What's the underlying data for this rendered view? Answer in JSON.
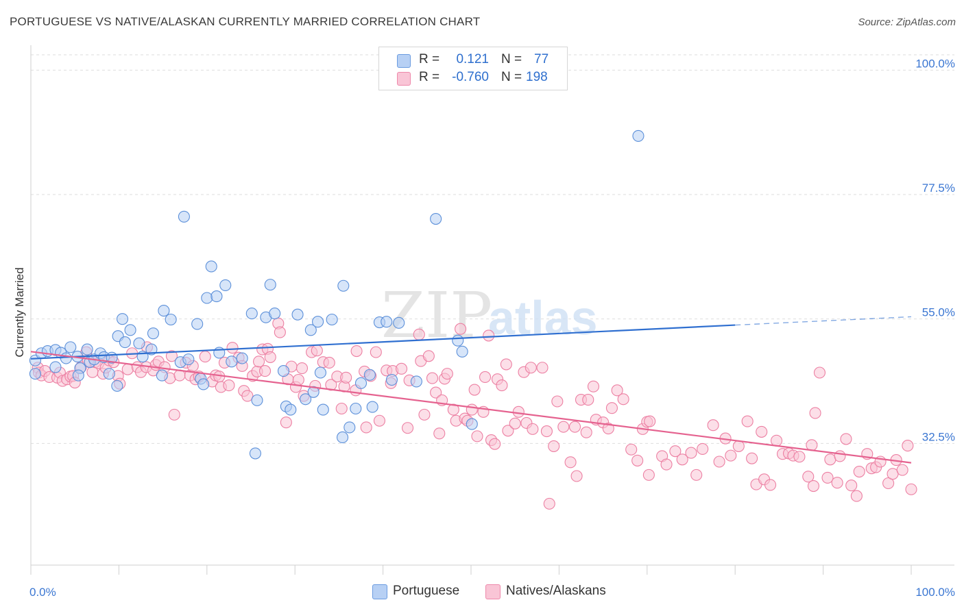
{
  "title": "PORTUGUESE VS NATIVE/ALASKAN CURRENTLY MARRIED CORRELATION CHART",
  "source": "Source: ZipAtlas.com",
  "watermark": {
    "zip": "ZIP",
    "atlas": "atlas"
  },
  "legend": {
    "r_label": "R =",
    "n_label": "N =",
    "rows": [
      {
        "r": "0.121",
        "n": "77",
        "fill": "#b7d0f4",
        "stroke": "#6a9be0"
      },
      {
        "r": "-0.760",
        "n": "198",
        "fill": "#f9c5d6",
        "stroke": "#ee88aa"
      }
    ]
  },
  "colors": {
    "portuguese_fill": "#b7d0f4",
    "portuguese_stroke": "#5b8fd9",
    "portuguese_line": "#2f6fd0",
    "native_fill": "#f9c5d6",
    "native_stroke": "#ec7fa2",
    "native_line": "#e5628f",
    "axis_label": "#3a76d2",
    "grid": "#dddddd"
  },
  "chart_data": {
    "type": "scatter",
    "title": "PORTUGUESE VS NATIVE/ALASKAN CURRENTLY MARRIED CORRELATION CHART",
    "xlabel": "",
    "ylabel": "Currently Married",
    "xlim": [
      0,
      100
    ],
    "ylim": [
      10.5,
      104.5
    ],
    "x_tick_labels": [
      {
        "value": 0,
        "label": "0.0%"
      },
      {
        "value": 100,
        "label": "100.0%"
      }
    ],
    "y_tick_labels": [
      {
        "value": 100,
        "label": "100.0%"
      },
      {
        "value": 77.5,
        "label": "77.5%"
      },
      {
        "value": 55,
        "label": "55.0%"
      },
      {
        "value": 32.5,
        "label": "32.5%"
      }
    ],
    "x_minor_ticks": [
      0,
      10,
      20,
      30,
      40,
      50,
      60,
      70,
      80,
      90,
      100
    ],
    "series": [
      {
        "name": "Portuguese",
        "r": 0.121,
        "n": 77,
        "trend": {
          "x0": 0,
          "y0": 47.8,
          "x1": 80,
          "y1": 53.9,
          "dash_x1": 100,
          "dash_y1": 55.4
        },
        "points": [
          [
            0.5,
            45.1
          ],
          [
            0.5,
            47.5
          ],
          [
            1.2,
            48.8
          ],
          [
            1.9,
            49.2
          ],
          [
            2.8,
            49.4
          ],
          [
            3.4,
            48.9
          ],
          [
            4.0,
            47.9
          ],
          [
            2.8,
            46.3
          ],
          [
            4.5,
            49.9
          ],
          [
            5.3,
            48.2
          ],
          [
            5.6,
            46.1
          ],
          [
            5.4,
            44.8
          ],
          [
            6.4,
            49.5
          ],
          [
            6.7,
            47.2
          ],
          [
            7.2,
            47.7
          ],
          [
            7.9,
            48.8
          ],
          [
            8.3,
            48.1
          ],
          [
            8.9,
            45.1
          ],
          [
            9.2,
            48.0
          ],
          [
            9.8,
            42.9
          ],
          [
            9.9,
            51.9
          ],
          [
            10.4,
            55.0
          ],
          [
            10.7,
            50.8
          ],
          [
            11.3,
            53.0
          ],
          [
            12.3,
            50.6
          ],
          [
            12.7,
            48.2
          ],
          [
            13.7,
            49.5
          ],
          [
            13.9,
            52.4
          ],
          [
            14.9,
            44.8
          ],
          [
            15.1,
            56.5
          ],
          [
            15.9,
            54.9
          ],
          [
            17.0,
            47.2
          ],
          [
            17.4,
            73.5
          ],
          [
            17.9,
            47.7
          ],
          [
            18.9,
            54.1
          ],
          [
            19.3,
            44.2
          ],
          [
            19.6,
            43.2
          ],
          [
            20.0,
            58.8
          ],
          [
            20.5,
            64.5
          ],
          [
            21.1,
            59.1
          ],
          [
            21.4,
            48.9
          ],
          [
            22.1,
            61.1
          ],
          [
            22.8,
            47.3
          ],
          [
            24.0,
            47.9
          ],
          [
            25.1,
            56.0
          ],
          [
            25.5,
            30.7
          ],
          [
            25.7,
            40.3
          ],
          [
            26.7,
            55.3
          ],
          [
            27.2,
            61.2
          ],
          [
            27.7,
            56.0
          ],
          [
            28.7,
            45.6
          ],
          [
            29.0,
            39.2
          ],
          [
            29.5,
            38.6
          ],
          [
            30.3,
            55.8
          ],
          [
            31.2,
            40.5
          ],
          [
            31.8,
            53.0
          ],
          [
            32.1,
            41.8
          ],
          [
            32.6,
            54.5
          ],
          [
            32.9,
            45.3
          ],
          [
            33.2,
            38.6
          ],
          [
            34.2,
            54.9
          ],
          [
            35.4,
            33.6
          ],
          [
            35.5,
            61.0
          ],
          [
            36.2,
            35.4
          ],
          [
            36.9,
            38.8
          ],
          [
            37.5,
            43.4
          ],
          [
            38.5,
            44.9
          ],
          [
            38.8,
            39.1
          ],
          [
            39.6,
            54.4
          ],
          [
            40.4,
            54.5
          ],
          [
            41.0,
            44.0
          ],
          [
            41.8,
            54.3
          ],
          [
            43.8,
            43.7
          ],
          [
            46.0,
            73.1
          ],
          [
            48.5,
            51.1
          ],
          [
            49.0,
            49.1
          ],
          [
            50.1,
            36.0
          ],
          [
            69.0,
            88.1
          ]
        ]
      },
      {
        "name": "Natives/Alaskans",
        "r": -0.76,
        "n": 198,
        "trend": {
          "x0": 0,
          "y0": 49.1,
          "x1": 100,
          "y1": 29.0
        },
        "points": [
          [
            0.8,
            46.2
          ],
          [
            0.9,
            45.3
          ],
          [
            1.2,
            44.8
          ],
          [
            1.6,
            45.6
          ],
          [
            2.1,
            44.5
          ],
          [
            3.0,
            44.4
          ],
          [
            3.3,
            45.3
          ],
          [
            3.6,
            43.8
          ],
          [
            4.1,
            44.1
          ],
          [
            4.5,
            44.6
          ],
          [
            4.8,
            44.7
          ],
          [
            5.0,
            43.5
          ],
          [
            5.7,
            46.3
          ],
          [
            6.3,
            49.0
          ],
          [
            6.5,
            47.4
          ],
          [
            7.0,
            45.4
          ],
          [
            7.3,
            47.2
          ],
          [
            7.7,
            47.0
          ],
          [
            8.2,
            45.1
          ],
          [
            8.5,
            46.2
          ],
          [
            8.9,
            47.5
          ],
          [
            9.4,
            47.2
          ],
          [
            9.9,
            44.7
          ],
          [
            10.1,
            43.3
          ],
          [
            11.0,
            45.9
          ],
          [
            11.5,
            48.8
          ],
          [
            12.1,
            46.3
          ],
          [
            12.5,
            45.4
          ],
          [
            13.1,
            46.3
          ],
          [
            13.2,
            49.9
          ],
          [
            13.9,
            45.7
          ],
          [
            14.2,
            46.7
          ],
          [
            14.5,
            47.3
          ],
          [
            15.2,
            46.3
          ],
          [
            15.8,
            44.3
          ],
          [
            16.0,
            48.3
          ],
          [
            16.3,
            37.7
          ],
          [
            16.9,
            44.8
          ],
          [
            17.6,
            47.1
          ],
          [
            18.1,
            44.8
          ],
          [
            18.4,
            46.5
          ],
          [
            18.7,
            44.1
          ],
          [
            19.1,
            44.6
          ],
          [
            19.8,
            48.2
          ],
          [
            20.6,
            43.7
          ],
          [
            21.0,
            44.8
          ],
          [
            21.4,
            44.6
          ],
          [
            21.6,
            42.7
          ],
          [
            22.0,
            47.1
          ],
          [
            22.5,
            43.0
          ],
          [
            22.9,
            49.8
          ],
          [
            23.6,
            48.0
          ],
          [
            24.0,
            46.5
          ],
          [
            24.2,
            42.0
          ],
          [
            24.6,
            41.1
          ],
          [
            25.2,
            44.7
          ],
          [
            25.7,
            45.5
          ],
          [
            25.9,
            47.3
          ],
          [
            26.3,
            49.5
          ],
          [
            26.6,
            45.6
          ],
          [
            26.9,
            49.6
          ],
          [
            27.2,
            48.1
          ],
          [
            28.1,
            54.2
          ],
          [
            28.3,
            52.6
          ],
          [
            29.0,
            36.3
          ],
          [
            29.2,
            44.1
          ],
          [
            29.6,
            46.4
          ],
          [
            30.1,
            42.7
          ],
          [
            30.4,
            44.0
          ],
          [
            30.8,
            46.1
          ],
          [
            31.0,
            41.1
          ],
          [
            31.9,
            49.0
          ],
          [
            32.3,
            42.9
          ],
          [
            32.5,
            49.3
          ],
          [
            33.2,
            47.2
          ],
          [
            33.9,
            47.1
          ],
          [
            34.1,
            43.1
          ],
          [
            34.8,
            44.6
          ],
          [
            35.3,
            38.8
          ],
          [
            35.6,
            42.8
          ],
          [
            35.8,
            44.4
          ],
          [
            36.9,
            42.1
          ],
          [
            37.0,
            49.2
          ],
          [
            37.9,
            45.5
          ],
          [
            38.1,
            35.4
          ],
          [
            38.6,
            44.7
          ],
          [
            39.2,
            49.0
          ],
          [
            39.6,
            36.6
          ],
          [
            40.4,
            45.7
          ],
          [
            40.9,
            43.4
          ],
          [
            41.1,
            45.6
          ],
          [
            42.1,
            46.0
          ],
          [
            42.8,
            35.3
          ],
          [
            43.0,
            43.9
          ],
          [
            44.1,
            52.2
          ],
          [
            44.3,
            47.4
          ],
          [
            44.7,
            37.7
          ],
          [
            45.2,
            48.3
          ],
          [
            45.6,
            44.3
          ],
          [
            46.0,
            41.7
          ],
          [
            46.4,
            34.3
          ],
          [
            46.7,
            40.3
          ],
          [
            47.0,
            44.2
          ],
          [
            47.3,
            45.1
          ],
          [
            48.0,
            38.6
          ],
          [
            48.3,
            36.6
          ],
          [
            48.8,
            53.2
          ],
          [
            49.3,
            37.0
          ],
          [
            49.6,
            36.6
          ],
          [
            50.1,
            38.6
          ],
          [
            50.4,
            42.2
          ],
          [
            50.7,
            33.8
          ],
          [
            51.4,
            38.2
          ],
          [
            51.6,
            44.5
          ],
          [
            52.0,
            52.0
          ],
          [
            52.3,
            33.1
          ],
          [
            52.7,
            32.4
          ],
          [
            53.0,
            44.1
          ],
          [
            53.5,
            43.0
          ],
          [
            54.0,
            46.8
          ],
          [
            54.2,
            34.8
          ],
          [
            55.0,
            36.1
          ],
          [
            55.4,
            38.2
          ],
          [
            56.0,
            45.4
          ],
          [
            56.3,
            36.2
          ],
          [
            56.8,
            46.2
          ],
          [
            57.0,
            35.1
          ],
          [
            58.1,
            46.2
          ],
          [
            58.6,
            34.7
          ],
          [
            58.9,
            21.6
          ],
          [
            59.4,
            32.0
          ],
          [
            59.8,
            40.1
          ],
          [
            60.5,
            35.5
          ],
          [
            61.3,
            29.1
          ],
          [
            61.8,
            35.5
          ],
          [
            62.0,
            26.6
          ],
          [
            62.5,
            40.4
          ],
          [
            63.1,
            34.5
          ],
          [
            63.3,
            40.4
          ],
          [
            63.9,
            42.8
          ],
          [
            64.2,
            36.8
          ],
          [
            65.0,
            36.3
          ],
          [
            65.6,
            35.2
          ],
          [
            66.0,
            38.9
          ],
          [
            66.6,
            42.1
          ],
          [
            67.3,
            40.5
          ],
          [
            68.2,
            31.4
          ],
          [
            68.9,
            29.4
          ],
          [
            69.5,
            35.1
          ],
          [
            70.0,
            36.4
          ],
          [
            70.2,
            26.8
          ],
          [
            70.3,
            36.5
          ],
          [
            71.7,
            30.2
          ],
          [
            72.2,
            28.7
          ],
          [
            73.2,
            31.1
          ],
          [
            74.0,
            29.6
          ],
          [
            75.0,
            30.8
          ],
          [
            75.6,
            26.8
          ],
          [
            76.3,
            31.5
          ],
          [
            77.5,
            35.8
          ],
          [
            78.2,
            29.2
          ],
          [
            78.9,
            33.4
          ],
          [
            79.5,
            30.3
          ],
          [
            80.4,
            32.0
          ],
          [
            81.4,
            36.5
          ],
          [
            81.9,
            29.8
          ],
          [
            82.4,
            25.1
          ],
          [
            83.0,
            34.6
          ],
          [
            83.3,
            26.0
          ],
          [
            84.0,
            25.0
          ],
          [
            84.7,
            33.0
          ],
          [
            85.4,
            30.6
          ],
          [
            86.1,
            30.7
          ],
          [
            86.6,
            30.3
          ],
          [
            87.3,
            30.1
          ],
          [
            88.3,
            26.5
          ],
          [
            88.7,
            32.2
          ],
          [
            88.9,
            24.8
          ],
          [
            89.1,
            38.0
          ],
          [
            89.6,
            45.3
          ],
          [
            90.5,
            26.3
          ],
          [
            90.8,
            29.6
          ],
          [
            91.6,
            25.4
          ],
          [
            91.9,
            30.2
          ],
          [
            92.6,
            33.3
          ],
          [
            93.2,
            24.9
          ],
          [
            93.8,
            23.0
          ],
          [
            94.1,
            27.4
          ],
          [
            95.0,
            30.6
          ],
          [
            95.5,
            28.0
          ],
          [
            96.0,
            28.2
          ],
          [
            96.5,
            29.2
          ],
          [
            97.4,
            25.3
          ],
          [
            97.9,
            27.0
          ],
          [
            98.3,
            29.5
          ],
          [
            99.0,
            27.7
          ],
          [
            99.6,
            32.1
          ],
          [
            100.0,
            24.2
          ]
        ]
      }
    ]
  }
}
